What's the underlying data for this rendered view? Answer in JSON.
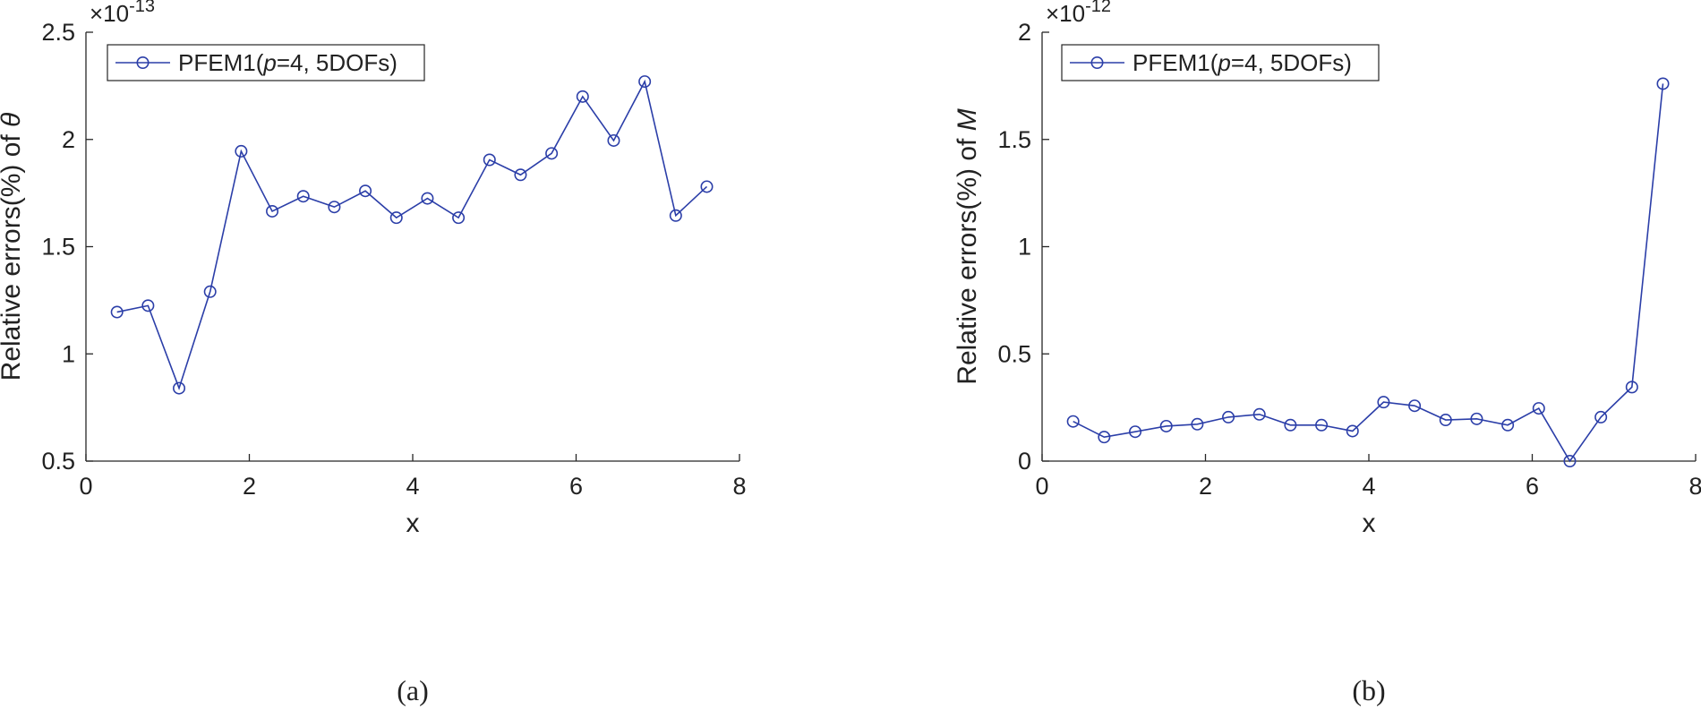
{
  "chart_data": [
    {
      "type": "line",
      "panel": "a",
      "caption": "(a)",
      "xlabel": "x",
      "ylabel_prefix": "Relative errors(%) of ",
      "ylabel_symbol": "θ",
      "xlim": [
        0,
        8
      ],
      "ylim": [
        0.5,
        2.5
      ],
      "xticks": [
        0,
        2,
        4,
        6,
        8
      ],
      "xtick_labels": [
        "0",
        "2",
        "4",
        "6",
        "8"
      ],
      "yticks": [
        0.5,
        1,
        1.5,
        2,
        2.5
      ],
      "ytick_labels": [
        "0.5",
        "1",
        "1.5",
        "2",
        "2.5"
      ],
      "exponent_base": "×10",
      "exponent_power": "-13",
      "legend": {
        "position": "top-left",
        "name": "PFEM1",
        "paren_open": "(",
        "param_symbol": "p",
        "param_rest": "=4, 5DOFs)"
      },
      "color": "#2b3ea8",
      "series": [
        {
          "name": "PFEM1(p=4, 5DOFs)",
          "x": [
            0.38,
            0.76,
            1.14,
            1.52,
            1.9,
            2.28,
            2.66,
            3.04,
            3.42,
            3.8,
            4.18,
            4.56,
            4.94,
            5.32,
            5.7,
            6.08,
            6.46,
            6.84,
            7.22,
            7.6
          ],
          "y": [
            1.195,
            1.225,
            0.84,
            1.29,
            1.945,
            1.665,
            1.735,
            1.685,
            1.76,
            1.635,
            1.725,
            1.635,
            1.905,
            1.835,
            1.935,
            2.2,
            1.995,
            2.27,
            1.645,
            1.78
          ]
        }
      ]
    },
    {
      "type": "line",
      "panel": "b",
      "caption": "(b)",
      "xlabel": "x",
      "ylabel_prefix": "Relative errors(%) of ",
      "ylabel_symbol": "M",
      "xlim": [
        0,
        8
      ],
      "ylim": [
        0,
        2
      ],
      "xticks": [
        0,
        2,
        4,
        6,
        8
      ],
      "xtick_labels": [
        "0",
        "2",
        "4",
        "6",
        "8"
      ],
      "yticks": [
        0,
        0.5,
        1,
        1.5,
        2
      ],
      "ytick_labels": [
        "0",
        "0.5",
        "1",
        "1.5",
        "2"
      ],
      "exponent_base": "×10",
      "exponent_power": "-12",
      "legend": {
        "position": "top-left",
        "name": "PFEM1",
        "paren_open": "(",
        "param_symbol": "p",
        "param_rest": "=4, 5DOFs)"
      },
      "color": "#2b3ea8",
      "series": [
        {
          "name": "PFEM1(p=4, 5DOFs)",
          "x": [
            0.38,
            0.76,
            1.14,
            1.52,
            1.9,
            2.28,
            2.66,
            3.04,
            3.42,
            3.8,
            4.18,
            4.56,
            4.94,
            5.32,
            5.7,
            6.08,
            6.46,
            6.84,
            7.22,
            7.6
          ],
          "y": [
            0.185,
            0.112,
            0.137,
            0.163,
            0.172,
            0.205,
            0.218,
            0.168,
            0.168,
            0.14,
            0.275,
            0.258,
            0.192,
            0.197,
            0.168,
            0.246,
            0.0,
            0.205,
            0.345,
            1.76
          ]
        }
      ]
    }
  ]
}
